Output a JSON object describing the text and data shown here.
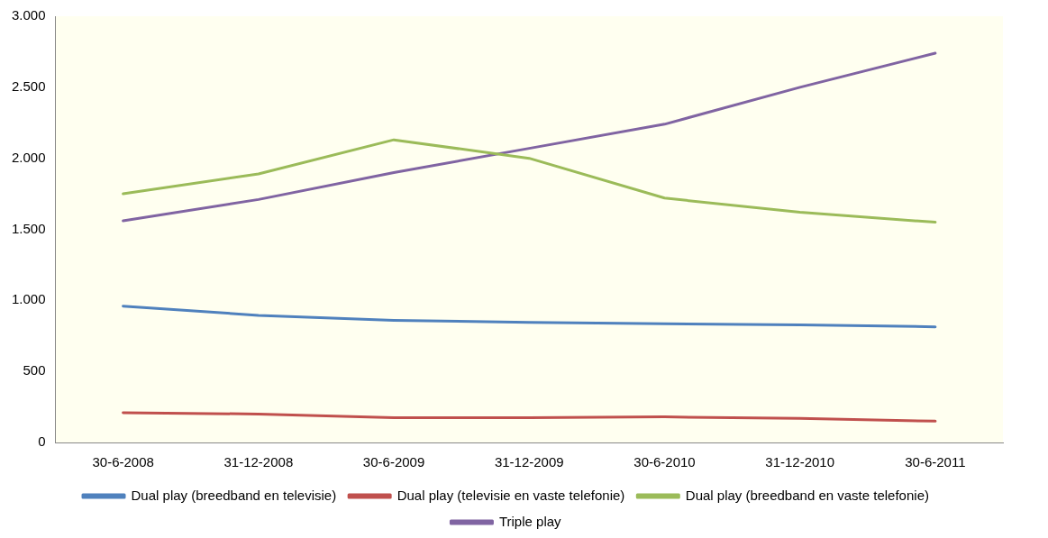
{
  "chart_data": {
    "type": "line",
    "categories": [
      "30-6-2008",
      "31-12-2008",
      "30-6-2009",
      "31-12-2009",
      "30-6-2010",
      "31-12-2010",
      "30-6-2011"
    ],
    "series": [
      {
        "name": "Dual play (breedband en televisie)",
        "color": "#4f81bd",
        "values": [
          960,
          895,
          860,
          845,
          835,
          828,
          814
        ]
      },
      {
        "name": "Dual play (televisie en vaste telefonie)",
        "color": "#c0504d",
        "values": [
          210,
          200,
          175,
          175,
          180,
          170,
          150
        ]
      },
      {
        "name": "Dual play (breedband en vaste telefonie)",
        "color": "#9bbb59",
        "values": [
          1750,
          1890,
          2130,
          2000,
          1720,
          1620,
          1550
        ]
      },
      {
        "name": "Triple play",
        "color": "#8064a2",
        "values": [
          1560,
          1710,
          1900,
          2070,
          2240,
          2500,
          2740
        ]
      }
    ],
    "ylim": [
      0,
      3000
    ],
    "yticks": [
      0,
      {
        "value": 500,
        "label": "500"
      },
      {
        "value": 1000,
        "label": "1.000"
      },
      {
        "value": 1500,
        "label": "1.500"
      },
      {
        "value": 2000,
        "label": "2.000"
      },
      {
        "value": 2500,
        "label": "2.500"
      },
      {
        "value": 3000,
        "label": "3.000"
      }
    ],
    "grid": false,
    "legend": "bottom",
    "marker": "none",
    "line_style": "solid"
  }
}
